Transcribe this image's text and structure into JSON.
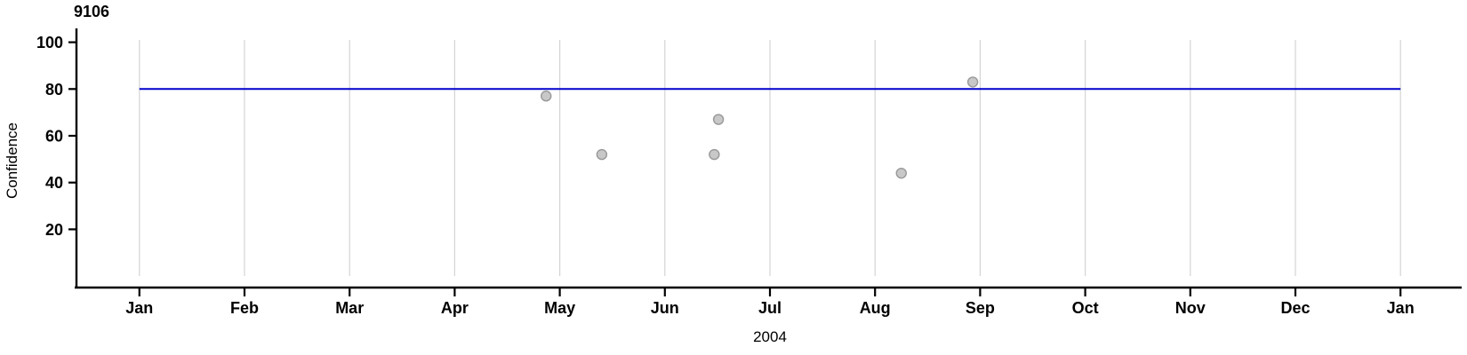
{
  "chart_data": {
    "type": "scatter",
    "title": "9106",
    "xlabel": "2004",
    "ylabel": "Confidence",
    "x_ticks": [
      "Jan",
      "Feb",
      "Mar",
      "Apr",
      "May",
      "Jun",
      "Jul",
      "Aug",
      "Sep",
      "Oct",
      "Nov",
      "Dec",
      "Jan"
    ],
    "y_ticks": [
      20,
      40,
      60,
      80,
      100
    ],
    "ylim": [
      0,
      105
    ],
    "grid": "vertical-months-only",
    "legend": "none",
    "reference_line": {
      "value": 80,
      "extent_months": [
        0,
        12
      ],
      "color": "#0000cc"
    },
    "points": [
      {
        "date": "2004-04-26",
        "month_frac": 3.87,
        "confidence": 77
      },
      {
        "date": "2004-05-13",
        "month_frac": 4.4,
        "confidence": 52
      },
      {
        "date": "2004-06-14",
        "month_frac": 5.47,
        "confidence": 52
      },
      {
        "date": "2004-06-16",
        "month_frac": 5.51,
        "confidence": 67
      },
      {
        "date": "2004-08-08",
        "month_frac": 7.25,
        "confidence": 44
      },
      {
        "date": "2004-08-29",
        "month_frac": 7.93,
        "confidence": 83
      }
    ],
    "colors": {
      "point_fill": "#c8c8c8",
      "point_stroke": "#989898",
      "gridline": "#d4d4d4",
      "axis": "#000000",
      "reference": "#0000cc"
    }
  }
}
